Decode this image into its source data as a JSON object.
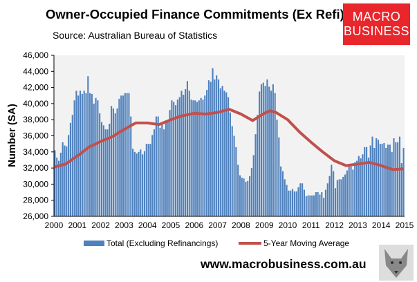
{
  "title": "Owner-Occupied Finance Commitments (Ex Refi)",
  "source": "Source: Australian  Bureau of Statistics",
  "logo": {
    "line1": "MACRO",
    "line2": "BUSINESS"
  },
  "footer_url": "www.macrobusiness.com.au",
  "colors": {
    "bars": "#4f81bd",
    "moving_average": "#c0504d",
    "plot_bg": "#f2f2f2",
    "logo_bg": "#e8262c"
  },
  "chart_data": {
    "type": "bar",
    "title": "Owner-Occupied Finance Commitments (Ex Refi)",
    "ylabel": "Number (SA)",
    "xlabel": "",
    "ylim": [
      26000,
      46000
    ],
    "yticks": [
      "26,000",
      "28,000",
      "30,000",
      "32,000",
      "34,000",
      "36,000",
      "38,000",
      "40,000",
      "42,000",
      "44,000",
      "46,000"
    ],
    "xticks": [
      "2000",
      "2001",
      "2002",
      "2003",
      "2004",
      "2005",
      "2006",
      "2007",
      "2008",
      "2009",
      "2010",
      "2011",
      "2012",
      "2013",
      "2014",
      "2015"
    ],
    "xlim": [
      2000,
      2015
    ],
    "grid": false,
    "legend_position": "bottom",
    "series": [
      {
        "name": "Total (Excluding Refinancings)",
        "type": "bar",
        "frequency": "monthly",
        "start": "2000-01",
        "values": [
          34200,
          33300,
          32900,
          33900,
          35200,
          34800,
          34700,
          36100,
          37600,
          38600,
          40400,
          41600,
          41000,
          41600,
          41200,
          41600,
          41300,
          43400,
          41300,
          41200,
          40000,
          40700,
          40400,
          38800,
          37700,
          37300,
          36800,
          36800,
          37500,
          39700,
          39400,
          38800,
          39400,
          40600,
          41000,
          41000,
          41300,
          41300,
          41300,
          38400,
          34400,
          34000,
          33800,
          34000,
          34300,
          33700,
          34100,
          35000,
          35000,
          35000,
          36100,
          36800,
          38400,
          38400,
          37000,
          37400,
          36800,
          37700,
          38000,
          39200,
          40400,
          40200,
          39800,
          40500,
          40800,
          41600,
          41100,
          41800,
          42800,
          41600,
          40500,
          40400,
          40400,
          40200,
          40400,
          40700,
          40500,
          41000,
          41700,
          42900,
          42700,
          44400,
          43000,
          43500,
          43000,
          41900,
          42200,
          41600,
          41400,
          40800,
          38900,
          37200,
          36000,
          34600,
          32400,
          31100,
          30800,
          30700,
          30300,
          30400,
          31000,
          32000,
          33600,
          36200,
          38600,
          41500,
          42400,
          42600,
          42200,
          43000,
          42100,
          41600,
          42400,
          41300,
          38000,
          35800,
          32200,
          31600,
          30600,
          29900,
          29200,
          29200,
          29400,
          29100,
          29100,
          29600,
          30100,
          30100,
          29300,
          28500,
          28600,
          28600,
          28600,
          28600,
          29000,
          29000,
          28700,
          29000,
          28300,
          29300,
          30100,
          31000,
          32400,
          31600,
          29500,
          30500,
          30600,
          30600,
          30900,
          31200,
          31700,
          32400,
          32200,
          31800,
          32700,
          32900,
          33500,
          33200,
          33700,
          34600,
          34600,
          33300,
          34800,
          35900,
          34500,
          35700,
          35500,
          35000,
          35000,
          35100,
          34500,
          34900,
          34900,
          34000,
          35700,
          35200,
          35200,
          35900,
          32600,
          34500
        ]
      },
      {
        "name": "5-Year Moving Average",
        "type": "line",
        "x": [
          2000.0,
          2000.5,
          2001.0,
          2001.5,
          2002.0,
          2002.5,
          2003.0,
          2003.5,
          2004.0,
          2004.5,
          2005.0,
          2005.5,
          2006.0,
          2006.5,
          2007.0,
          2007.5,
          2008.0,
          2008.5,
          2009.0,
          2009.25,
          2009.5,
          2010.0,
          2010.5,
          2011.0,
          2011.5,
          2012.0,
          2012.5,
          2013.0,
          2013.5,
          2014.0,
          2014.5,
          2014.95
        ],
        "values": [
          32100,
          32500,
          33500,
          34600,
          35300,
          35900,
          36800,
          37600,
          37600,
          37400,
          38000,
          38500,
          38800,
          38700,
          38900,
          39300,
          38700,
          37900,
          38800,
          39100,
          38900,
          38000,
          36500,
          35200,
          34000,
          32900,
          32300,
          32500,
          32700,
          32300,
          31800,
          31900
        ]
      }
    ]
  }
}
